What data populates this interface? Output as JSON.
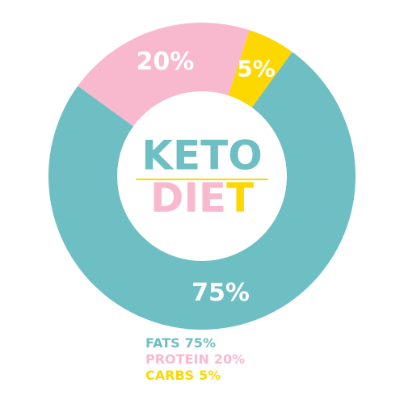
{
  "chart_data": {
    "type": "donut",
    "title": "KETO",
    "subtitle": "DIET",
    "categories": [
      "FATS",
      "PROTEIN",
      "CARBS"
    ],
    "values": [
      75,
      20,
      5
    ],
    "value_labels": [
      "75%",
      "20%",
      "5%"
    ],
    "colors": [
      "#6dbfc4",
      "#f8b9cf",
      "#fcd800"
    ]
  }
}
